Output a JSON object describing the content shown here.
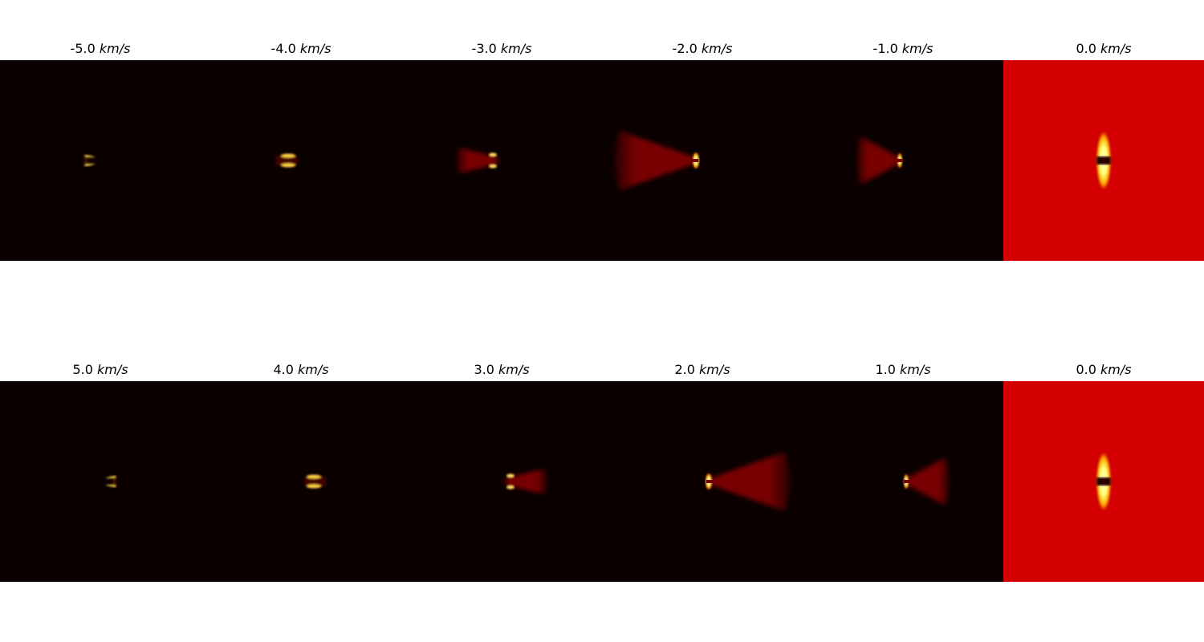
{
  "unit": "km/s",
  "rows": [
    {
      "panels": [
        {
          "velocity": "-5.0"
        },
        {
          "velocity": "-4.0"
        },
        {
          "velocity": "-3.0"
        },
        {
          "velocity": "-2.0"
        },
        {
          "velocity": "-1.0"
        },
        {
          "velocity": "0.0"
        }
      ]
    },
    {
      "panels": [
        {
          "velocity": "5.0"
        },
        {
          "velocity": "4.0"
        },
        {
          "velocity": "3.0"
        },
        {
          "velocity": "2.0"
        },
        {
          "velocity": "1.0"
        },
        {
          "velocity": "0.0"
        }
      ]
    }
  ],
  "colors": {
    "background": "#0a0000",
    "zero_panel": "#d40000",
    "emission": "#8a0000",
    "hot_core": "#ffff80"
  }
}
